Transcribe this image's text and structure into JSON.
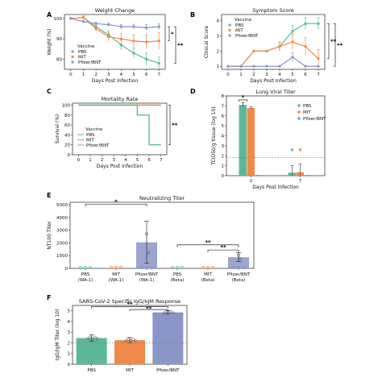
{
  "colors": {
    "PBS": "#5db89a",
    "MIT": "#f08a4b",
    "Pfizer/BNT": "#8a95c8"
  },
  "chart_data": [
    {
      "panel": "A",
      "type": "line",
      "title": "Weight Change",
      "xlabel": "Days Post Infection",
      "ylabel": "Weight (%)",
      "xlim": [
        -0.5,
        7.5
      ],
      "ylim": [
        75,
        102
      ],
      "yticks": [
        80,
        90,
        100
      ],
      "xticks": [
        0,
        1,
        2,
        3,
        4,
        5,
        6,
        7
      ],
      "legend_title": "Vaccine",
      "legend_position": "bottom-left",
      "x": [
        0,
        1,
        2,
        3,
        4,
        5,
        6,
        7
      ],
      "series": [
        {
          "name": "PBS",
          "values": [
            100,
            100.5,
            96,
            92,
            87,
            83,
            80,
            78
          ],
          "err": [
            0.5,
            0.7,
            1.5,
            2,
            2.5,
            2.5,
            3,
            3
          ]
        },
        {
          "name": "MIT",
          "values": [
            100,
            100.5,
            95,
            91,
            90,
            89,
            88.5,
            89
          ],
          "err": [
            0.5,
            0.7,
            1.5,
            2,
            2.5,
            3,
            3.5,
            4
          ]
        },
        {
          "name": "Pfizer/BNT",
          "values": [
            100,
            98.5,
            97.5,
            97,
            96,
            96,
            95.5,
            96
          ],
          "err": [
            0.3,
            0.5,
            0.7,
            0.8,
            1,
            1.2,
            1.5,
            1.5
          ]
        }
      ],
      "significance": [
        "*",
        "**"
      ]
    },
    {
      "panel": "B",
      "type": "line",
      "title": "Symptom Score",
      "xlabel": "Days Post Infection",
      "ylabel": "Clinical Score",
      "xlim": [
        -0.5,
        7.5
      ],
      "ylim": [
        0.8,
        4.4
      ],
      "yticks": [
        1,
        2,
        3,
        4
      ],
      "xticks": [
        0,
        1,
        2,
        3,
        4,
        5,
        6,
        7
      ],
      "legend_title": "Vaccine",
      "legend_position": "top-left",
      "x": [
        0,
        1,
        2,
        3,
        4,
        5,
        6,
        7
      ],
      "series": [
        {
          "name": "PBS",
          "values": [
            1,
            1,
            2,
            2,
            2.3,
            3.3,
            3.8,
            3.8
          ],
          "err": [
            0,
            0,
            0,
            0,
            0.3,
            0.4,
            0.4,
            0.4
          ]
        },
        {
          "name": "MIT",
          "values": [
            1,
            1,
            2,
            2,
            2.3,
            2.6,
            2.3,
            1.5
          ],
          "err": [
            0,
            0,
            0,
            0,
            0.3,
            0.5,
            0.6,
            0.6
          ]
        },
        {
          "name": "Pfizer/BNT",
          "values": [
            1,
            1,
            1,
            1,
            1,
            1.6,
            1,
            1
          ],
          "err": [
            0,
            0,
            0,
            0,
            0,
            0.3,
            0,
            0
          ]
        }
      ],
      "significance": [
        "**",
        "**"
      ]
    },
    {
      "panel": "C",
      "type": "line",
      "title": "Mortality Rate",
      "xlabel": "Days Post Infection",
      "ylabel": "Survival (%)",
      "xlim": [
        -0.5,
        7.5
      ],
      "ylim": [
        0,
        104
      ],
      "yticks": [
        0,
        20,
        40,
        60,
        80,
        100
      ],
      "xticks": [
        0,
        1,
        2,
        3,
        4,
        5,
        6,
        7
      ],
      "legend_title": "Vaccine",
      "legend_position": "bottom-left",
      "series": [
        {
          "name": "PBS",
          "x": [
            0,
            5,
            5,
            6,
            6,
            7
          ],
          "values": [
            100,
            100,
            80,
            80,
            20,
            20
          ]
        },
        {
          "name": "MIT",
          "x": [
            0,
            7
          ],
          "values": [
            100,
            100
          ]
        },
        {
          "name": "Pfizer/BNT",
          "x": [
            0,
            7
          ],
          "values": [
            100,
            100
          ]
        }
      ],
      "significance": [
        "**"
      ]
    },
    {
      "panel": "D",
      "type": "bar",
      "title": "Lung Viral Titer",
      "xlabel": "Days Post Infection",
      "ylabel": "TCID50/g tissue (log 10)",
      "ylim": [
        0,
        8
      ],
      "yticks": [
        0,
        1,
        2,
        3,
        4,
        5,
        6,
        7,
        8
      ],
      "categories": [
        "2",
        "7"
      ],
      "limit_of_detection": 1.8,
      "legend_position": "right",
      "series": [
        {
          "name": "PBS",
          "values": [
            7.1,
            0.3
          ],
          "err": [
            0.2,
            0.7
          ]
        },
        {
          "name": "MIT",
          "values": [
            6.8,
            0.35
          ],
          "err": [
            0.1,
            0.8
          ]
        },
        {
          "name": "Pfizer/BNT",
          "values": [
            0,
            0
          ],
          "err": [
            0,
            0
          ]
        }
      ],
      "significance": [
        "*"
      ]
    },
    {
      "panel": "E",
      "type": "bar",
      "title": "Neutralizing Titer",
      "ylabel": "NT100 Titer",
      "ylim": [
        0,
        5200
      ],
      "yticks": [
        0,
        1000,
        2000,
        3000,
        4000,
        5000
      ],
      "categories": [
        "PBS\n(WA-1)",
        "MIT\n(WA-1)",
        "Pfizer/BNT\n(WA-1)",
        "PBS\n(Beta)",
        "MIT\n(Beta)",
        "Pfizer/BNT\n(Beta)"
      ],
      "values": [
        0,
        0,
        2050,
        0,
        0,
        880
      ],
      "err": [
        0,
        0,
        1650,
        0,
        0,
        350
      ],
      "bar_colors": [
        "PBS",
        "MIT",
        "Pfizer/BNT",
        "PBS",
        "MIT",
        "Pfizer/BNT"
      ],
      "significance": [
        "*",
        "**",
        "**"
      ]
    },
    {
      "panel": "F",
      "type": "bar",
      "title": "SARS-CoV-2 Specific IgG/IgM Response",
      "ylabel": "IgG/IgM Titer (log 10)",
      "ylim": [
        0,
        5.5
      ],
      "yticks": [
        0,
        1,
        2,
        3,
        4,
        5
      ],
      "categories": [
        "PBS",
        "MIT",
        "Pfizer/BNT"
      ],
      "values": [
        2.45,
        2.25,
        4.85
      ],
      "err": [
        0.3,
        0.25,
        0.15
      ],
      "limit_of_detection": 2.0,
      "significance": [
        "**",
        "**"
      ]
    }
  ]
}
